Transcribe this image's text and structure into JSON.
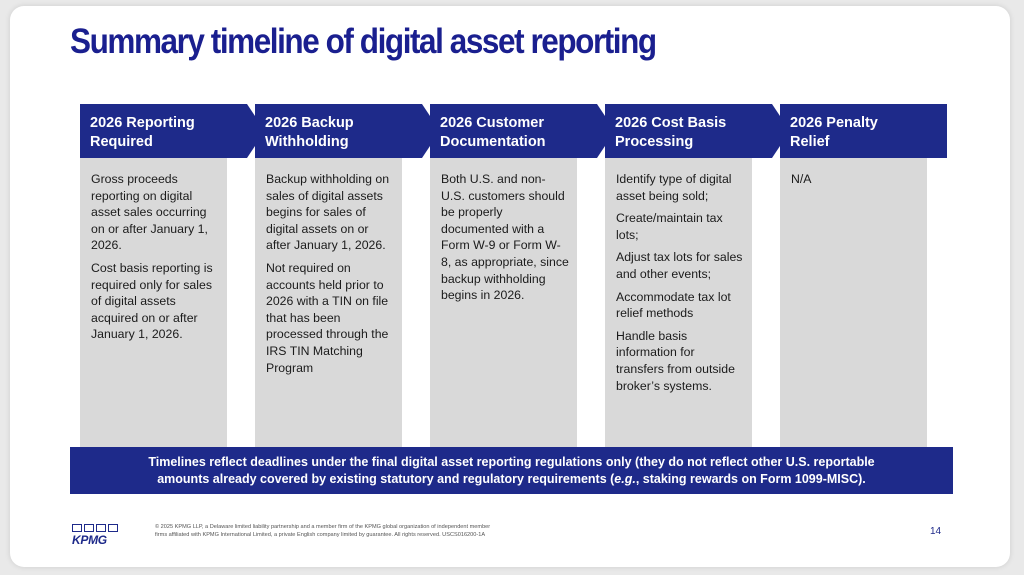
{
  "title": "Summary timeline of digital asset reporting",
  "colors": {
    "navy": "#1e2a8a",
    "title_blue": "#1a1f8f",
    "body_gray": "#d9d9d9"
  },
  "columns": [
    {
      "header_line1": "2026 Reporting",
      "header_line2": "Required",
      "paragraphs": [
        "Gross proceeds reporting on digital asset sales occurring on or after January 1, 2026.",
        "Cost basis reporting is required only for sales of digital assets acquired on or after January 1, 2026."
      ]
    },
    {
      "header_line1": "2026 Backup",
      "header_line2": "Withholding",
      "paragraphs": [
        "Backup withholding on sales of digital assets begins for sales of digital assets on or after January 1, 2026.",
        "Not required on accounts held prior to 2026 with a TIN on file that has been processed through the IRS TIN Matching Program"
      ]
    },
    {
      "header_line1": "2026 Customer",
      "header_line2": "Documentation",
      "paragraphs": [
        "Both U.S. and non-U.S. customers should be properly documented with a Form W-9 or Form W-8, as appropriate, since backup withholding begins in 2026."
      ]
    },
    {
      "header_line1": "2026 Cost Basis",
      "header_line2": "Processing",
      "paragraphs": [
        "Identify type of digital asset being sold;",
        "Create/maintain tax lots;",
        "Adjust tax lots for sales and other events;",
        "Accommodate tax lot relief methods",
        "Handle basis information for transfers from outside broker’s systems."
      ]
    },
    {
      "header_line1": "2026 Penalty",
      "header_line2": "Relief",
      "paragraphs": [
        "N/A"
      ]
    }
  ],
  "banner": {
    "line1": "Timelines reflect deadlines under the final digital asset reporting regulations only (they do not reflect other U.S. reportable",
    "line2_start": "amounts already covered by existing statutory and regulatory requirements (",
    "line2_eg": "e.g.",
    "line2_end": ", staking rewards on Form 1099-MISC)."
  },
  "footer": {
    "logo_text": "KPMG",
    "legal_line1": "© 2025 KPMG LLP, a Delaware limited liability partnership and a member firm of the KPMG global organization of independent member",
    "legal_line2": "firms affiliated with KPMG International Limited, a private English company limited by guarantee. All rights reserved. USCS016200-1A",
    "page_number": "14"
  }
}
